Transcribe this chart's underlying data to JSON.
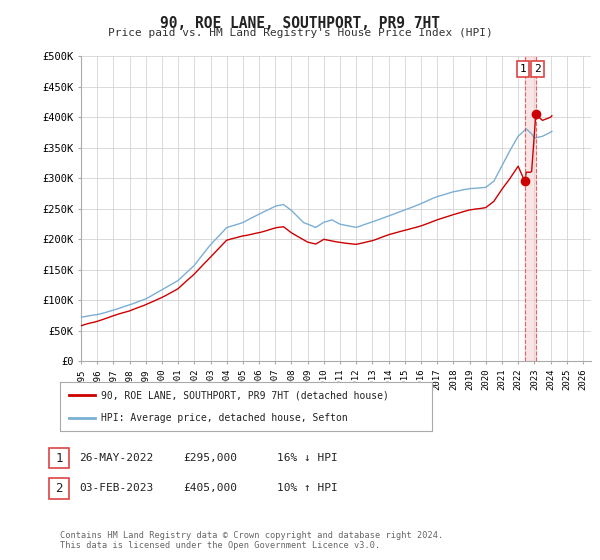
{
  "title": "90, ROE LANE, SOUTHPORT, PR9 7HT",
  "subtitle": "Price paid vs. HM Land Registry's House Price Index (HPI)",
  "ylabel_ticks": [
    "£0",
    "£50K",
    "£100K",
    "£150K",
    "£200K",
    "£250K",
    "£300K",
    "£350K",
    "£400K",
    "£450K",
    "£500K"
  ],
  "ytick_values": [
    0,
    50000,
    100000,
    150000,
    200000,
    250000,
    300000,
    350000,
    400000,
    450000,
    500000
  ],
  "ylim": [
    0,
    500000
  ],
  "xlim_start": 1995.0,
  "xlim_end": 2026.5,
  "xtick_years": [
    1995,
    1996,
    1997,
    1998,
    1999,
    2000,
    2001,
    2002,
    2003,
    2004,
    2005,
    2006,
    2007,
    2008,
    2009,
    2010,
    2011,
    2012,
    2013,
    2014,
    2015,
    2016,
    2017,
    2018,
    2019,
    2020,
    2021,
    2022,
    2023,
    2024,
    2025,
    2026
  ],
  "hpi_color": "#7bafd4",
  "price_color": "#cc0000",
  "grid_color": "#cccccc",
  "background_color": "#ffffff",
  "sale1_price": 295000,
  "sale1_x": 2022.41,
  "sale2_price": 405000,
  "sale2_x": 2023.09,
  "vline_color": "#dd4444",
  "vline_fill": "#f5cccc",
  "legend_label1": "90, ROE LANE, SOUTHPORT, PR9 7HT (detached house)",
  "legend_label2": "HPI: Average price, detached house, Sefton",
  "sale1_date": "26-MAY-2022",
  "sale2_date": "03-FEB-2023",
  "footer": "Contains HM Land Registry data © Crown copyright and database right 2024.\nThis data is licensed under the Open Government Licence v3.0."
}
